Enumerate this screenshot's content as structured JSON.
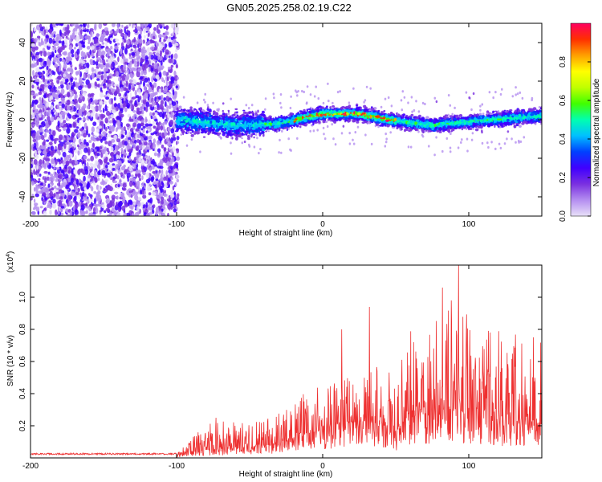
{
  "title": "GN05.2025.258.02.19.C22",
  "chart_data": [
    {
      "type": "heatmap",
      "xlabel": "Height of straight line (km)",
      "ylabel": "Frequency (Hz)",
      "xlim": [
        -200,
        150
      ],
      "ylim": [
        -50,
        50
      ],
      "xticks": [
        -200,
        -100,
        0,
        100
      ],
      "yticks": [
        -40,
        -20,
        0,
        20,
        40
      ],
      "colorbar": {
        "label": "Normalized spectral amplitude",
        "range": [
          0,
          1
        ],
        "ticks": [
          "0.0",
          "0.2",
          "0.4",
          "0.6",
          "0.8"
        ],
        "colors": [
          "#e8e0f8",
          "#b48ef0",
          "#7a30e0",
          "#4000ff",
          "#0040ff",
          "#00c0ff",
          "#00ffb0",
          "#40ff00",
          "#c0ff00",
          "#ffff00",
          "#ffa000",
          "#ff3000",
          "#ff0060"
        ]
      },
      "ridge_center_hz": [
        {
          "x": -100,
          "y": 0
        },
        {
          "x": -60,
          "y": -3
        },
        {
          "x": -30,
          "y": -2
        },
        {
          "x": 0,
          "y": 3
        },
        {
          "x": 25,
          "y": 3
        },
        {
          "x": 45,
          "y": 0
        },
        {
          "x": 75,
          "y": -3
        },
        {
          "x": 100,
          "y": -1
        },
        {
          "x": 150,
          "y": 2
        }
      ],
      "peak_amplitude_segment_km": [
        -20,
        50
      ]
    },
    {
      "type": "line",
      "xlabel": "Height of straight line (km)",
      "ylabel": "SNR (10 * v/v)",
      "yscale_note": "(x10",
      "yscale_exp": "4",
      "xlim": [
        -200,
        150
      ],
      "ylim": [
        0,
        1.2
      ],
      "xticks": [
        -200,
        -100,
        0,
        100
      ],
      "yticks": [
        "0.2",
        "0.4",
        "0.6",
        "0.8",
        "1.0"
      ],
      "series": [
        {
          "name": "SNR",
          "color": "#ee3030",
          "envelope": [
            {
              "x": -200,
              "base": 0.02,
              "peak": 0.03
            },
            {
              "x": -100,
              "base": 0.02,
              "peak": 0.03
            },
            {
              "x": -90,
              "base": 0.04,
              "peak": 0.12
            },
            {
              "x": -75,
              "base": 0.05,
              "peak": 0.22
            },
            {
              "x": -50,
              "base": 0.06,
              "peak": 0.2
            },
            {
              "x": -25,
              "base": 0.1,
              "peak": 0.28
            },
            {
              "x": -10,
              "base": 0.15,
              "peak": 0.4
            },
            {
              "x": 10,
              "base": 0.2,
              "peak": 0.45
            },
            {
              "x": 33,
              "base": 0.22,
              "peak": 0.55
            },
            {
              "x": 50,
              "base": 0.15,
              "peak": 0.5
            },
            {
              "x": 60,
              "base": 0.25,
              "peak": 0.8
            },
            {
              "x": 80,
              "base": 0.3,
              "peak": 0.85
            },
            {
              "x": 95,
              "base": 0.3,
              "peak": 0.9
            },
            {
              "x": 120,
              "base": 0.25,
              "peak": 0.75
            },
            {
              "x": 150,
              "base": 0.2,
              "peak": 0.7
            }
          ],
          "spikes": [
            {
              "x": 32,
              "y": 0.94
            },
            {
              "x": 82,
              "y": 1.06
            },
            {
              "x": 93,
              "y": 1.2
            },
            {
              "x": 88,
              "y": 0.98
            },
            {
              "x": -73,
              "y": 0.25
            },
            {
              "x": 13,
              "y": 0.8
            }
          ]
        }
      ]
    }
  ]
}
